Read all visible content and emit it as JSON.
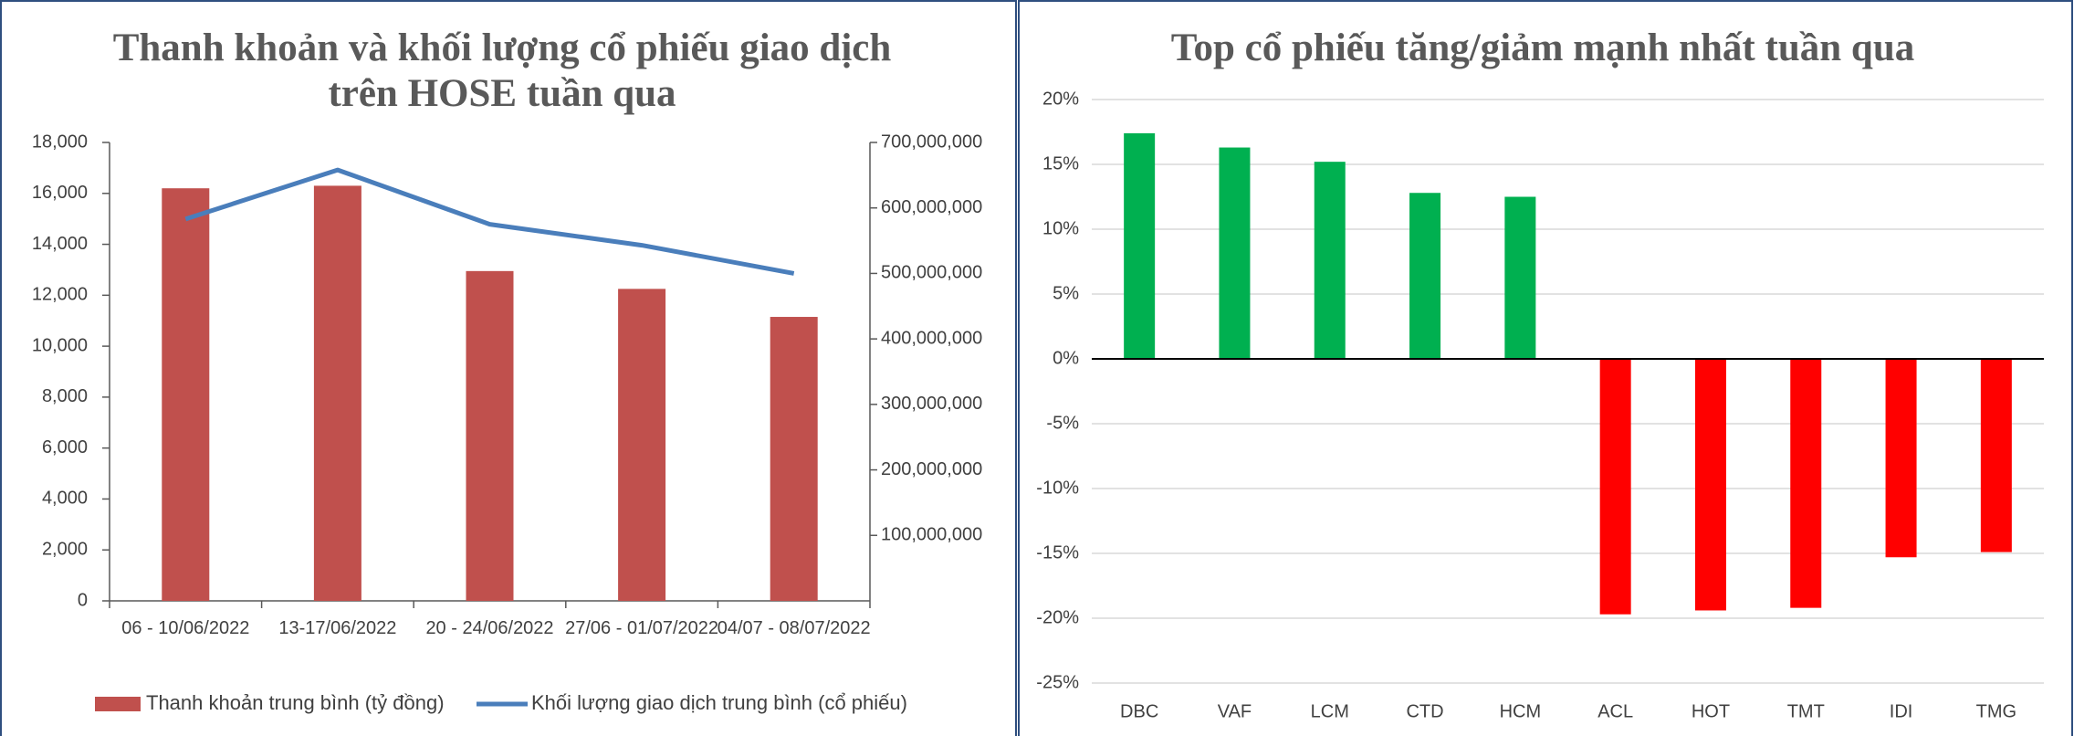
{
  "chart_data": [
    {
      "type": "bar_line",
      "title": "Thanh khoản và  khối lượng cổ phiếu giao dịch trên HOSE tuần qua",
      "categories": [
        "06 - 10/06/2022",
        "13-17/06/2022",
        "20 - 24/06/2022",
        "27/06 - 01/07/2022",
        "04/07 - 08/07/2022"
      ],
      "series": [
        {
          "name": "Thanh khoản trung bình (tỷ đồng)",
          "type": "bar",
          "color": "#c0504d",
          "values": [
            16200,
            16300,
            12950,
            12250,
            11150
          ]
        },
        {
          "name": "Khối lượng giao dịch trung bình (cổ phiếu)",
          "type": "line",
          "axis": "y2",
          "color": "#4a7ebb",
          "values": [
            583000000,
            658000000,
            575000000,
            543000000,
            500000000
          ]
        }
      ],
      "ylim": [
        0,
        18000
      ],
      "yticks": [
        0,
        {
          "value": 2000,
          "label": "2,000"
        },
        {
          "value": 4000,
          "label": "4,000"
        },
        {
          "value": 6000,
          "label": "6,000"
        },
        {
          "value": 8000,
          "label": "8,000"
        },
        {
          "value": 10000,
          "label": "10,000"
        },
        {
          "value": 12000,
          "label": "12,000"
        },
        {
          "value": 14000,
          "label": "14,000"
        },
        {
          "value": 16000,
          "label": "16,000"
        },
        {
          "value": 18000,
          "label": "18,000"
        }
      ],
      "y2lim": [
        0,
        700000000
      ],
      "y2ticks": [
        {
          "value": 100000000,
          "label": "100,000,000"
        },
        {
          "value": 200000000,
          "label": "200,000,000"
        },
        {
          "value": 300000000,
          "label": "300,000,000"
        },
        {
          "value": 400000000,
          "label": "400,000,000"
        },
        {
          "value": 500000000,
          "label": "500,000,000"
        },
        {
          "value": 600000000,
          "label": "600,000,000"
        },
        {
          "value": 700000000,
          "label": "700,000,000"
        }
      ],
      "grid": false,
      "legend": "bottom"
    },
    {
      "type": "bar",
      "title": "Top cổ phiếu tăng/giảm mạnh nhất tuần qua",
      "categories": [
        "DBC",
        "VAF",
        "LCM",
        "CTD",
        "HCM",
        "ACL",
        "HOT",
        "TMT",
        "IDI",
        "TMG"
      ],
      "values": [
        17.4,
        16.3,
        15.2,
        12.8,
        12.5,
        -19.7,
        -19.4,
        -19.2,
        -15.3,
        -14.9
      ],
      "colors": [
        "#00b050",
        "#00b050",
        "#00b050",
        "#00b050",
        "#00b050",
        "#ff0000",
        "#ff0000",
        "#ff0000",
        "#ff0000",
        "#ff0000"
      ],
      "ylim": [
        -25,
        20
      ],
      "yticks": [
        {
          "value": -25,
          "label": "-25%"
        },
        {
          "value": -20,
          "label": "-20%"
        },
        {
          "value": -15,
          "label": "-15%"
        },
        {
          "value": -10,
          "label": "-10%"
        },
        {
          "value": -5,
          "label": "-5%"
        },
        {
          "value": 0,
          "label": "0%"
        },
        {
          "value": 5,
          "label": "5%"
        },
        {
          "value": 10,
          "label": "10%"
        },
        {
          "value": 15,
          "label": "15%"
        },
        {
          "value": 20,
          "label": "20%"
        }
      ],
      "grid": true
    }
  ]
}
